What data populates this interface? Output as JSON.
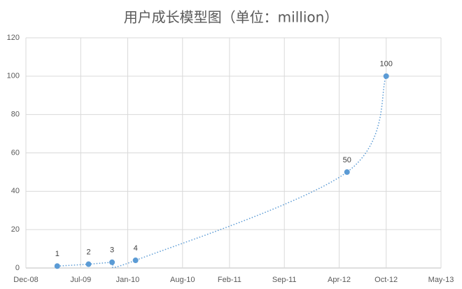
{
  "chart_data": {
    "type": "scatter",
    "title": "用户成长模型图（单位：million）",
    "x": [
      "2009-04",
      "2009-08",
      "2009-11",
      "2010-02",
      "2012-05",
      "2012-10"
    ],
    "series": [
      {
        "color": "#5b9bd5",
        "values": [
          1,
          2,
          3,
          4,
          50,
          100
        ]
      }
    ],
    "xlim": [
      "2008-12",
      "2013-05"
    ],
    "xticks": [
      {
        "value": "2008-12",
        "label": "Dec-08"
      },
      {
        "value": "2009-07",
        "label": "Jul-09"
      },
      {
        "value": "2010-01",
        "label": "Jan-10"
      },
      {
        "value": "2010-08",
        "label": "Aug-10"
      },
      {
        "value": "2011-02",
        "label": "Feb-11"
      },
      {
        "value": "2011-09",
        "label": "Sep-11"
      },
      {
        "value": "2012-04",
        "label": "Apr-12"
      },
      {
        "value": "2012-10",
        "label": "Oct-12"
      },
      {
        "value": "2013-05",
        "label": "May-13"
      }
    ],
    "ylim": [
      0,
      120
    ],
    "yticks": [
      0,
      20,
      40,
      60,
      80,
      100,
      120
    ],
    "grid": true
  }
}
